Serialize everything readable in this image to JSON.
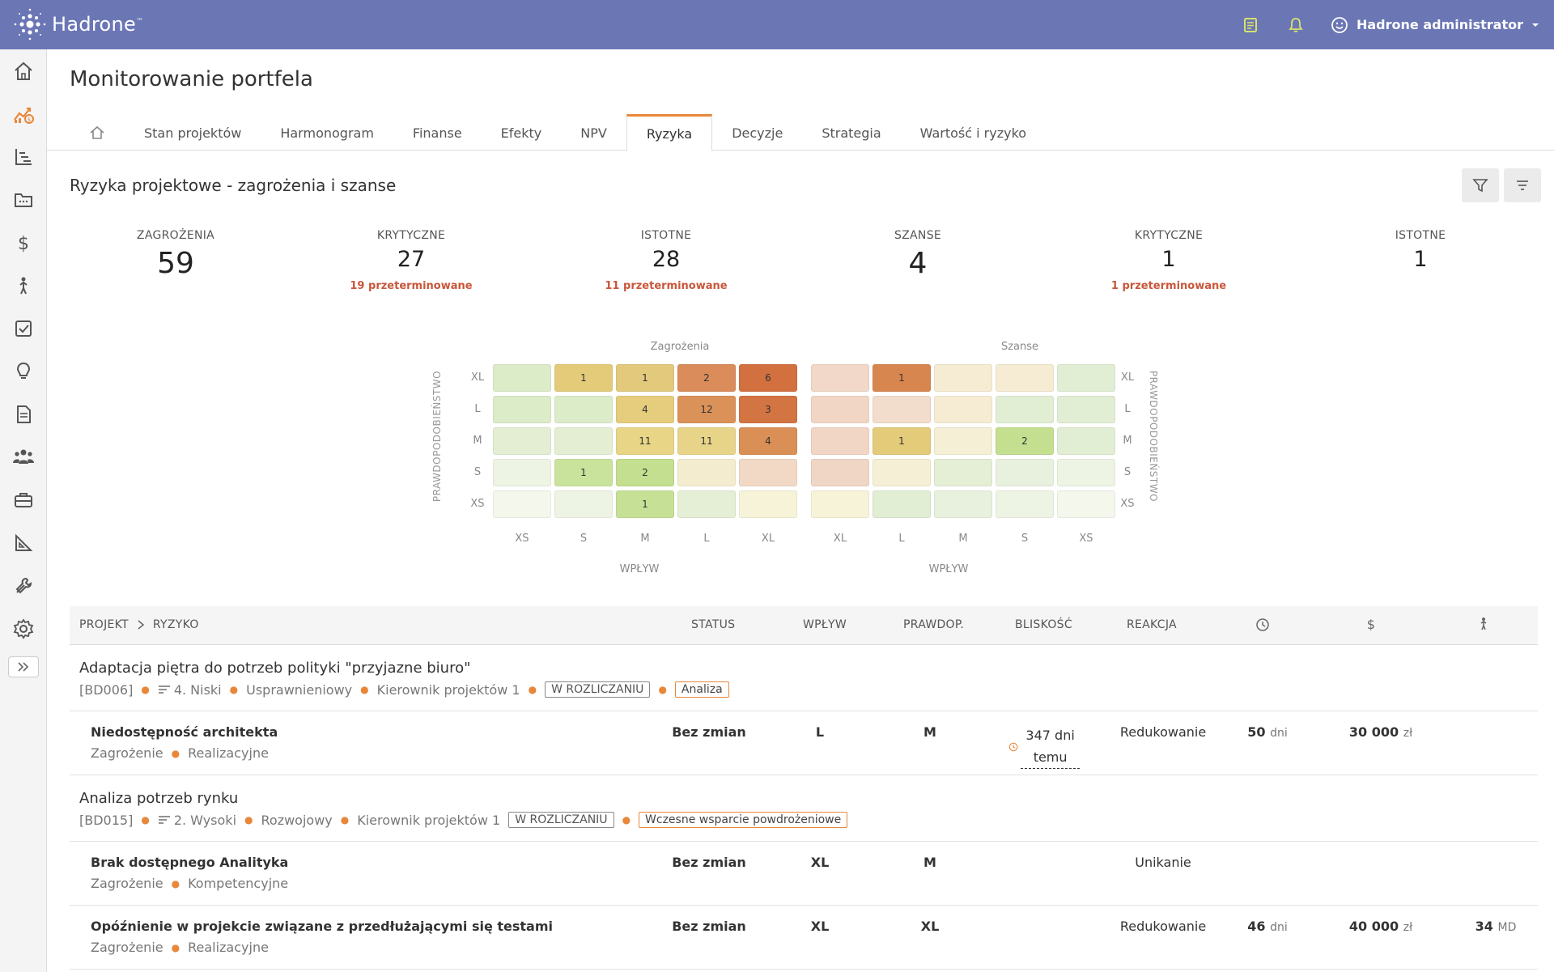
{
  "app": {
    "name": "Hadrone",
    "trademark": "™",
    "user": "Hadrone administrator"
  },
  "page": {
    "title": "Monitorowanie portfela"
  },
  "tabs": [
    {
      "label": ""
    },
    {
      "label": "Stan projektów"
    },
    {
      "label": "Harmonogram"
    },
    {
      "label": "Finanse"
    },
    {
      "label": "Efekty"
    },
    {
      "label": "NPV"
    },
    {
      "label": "Ryzyka"
    },
    {
      "label": "Decyzje"
    },
    {
      "label": "Strategia"
    },
    {
      "label": "Wartość i ryzyko"
    }
  ],
  "active_tab": "Ryzyka",
  "section": {
    "title": "Ryzyka projektowe - zagrożenia i szanse"
  },
  "stats": [
    {
      "label": "ZAGROŻENIA",
      "value": "59",
      "sub": ""
    },
    {
      "label": "KRYTYCZNE",
      "value": "27",
      "sub": "19 przeterminowane"
    },
    {
      "label": "ISTOTNE",
      "value": "28",
      "sub": "11 przeterminowane"
    },
    {
      "label": "SZANSE",
      "value": "4",
      "sub": ""
    },
    {
      "label": "KRYTYCZNE",
      "value": "1",
      "sub": "1 przeterminowane"
    },
    {
      "label": "ISTOTNE",
      "value": "1",
      "sub": ""
    }
  ],
  "matrix": {
    "threats_title": "Zagrożenia",
    "opportunities_title": "Szanse",
    "row_labels": [
      "XL",
      "L",
      "M",
      "S",
      "XS"
    ],
    "threat_cols": [
      "XS",
      "S",
      "M",
      "L",
      "XL"
    ],
    "opp_cols": [
      "XL",
      "L",
      "M",
      "S",
      "XS"
    ],
    "axis_x": "WPŁYW",
    "axis_y": "PRAWDOPODOBIEŃSTWO",
    "threats": [
      [
        {
          "v": "",
          "c": "#dcebc8"
        },
        {
          "v": "1",
          "c": "#e3cb7a"
        },
        {
          "v": "1",
          "c": "#e3c97c"
        },
        {
          "v": "2",
          "c": "#da8c5a"
        },
        {
          "v": "6",
          "c": "#d3703f"
        }
      ],
      [
        {
          "v": "",
          "c": "#dcebc8"
        },
        {
          "v": "",
          "c": "#dcebc8"
        },
        {
          "v": "4",
          "c": "#e5cd7d"
        },
        {
          "v": "12",
          "c": "#da9259"
        },
        {
          "v": "3",
          "c": "#d37443"
        }
      ],
      [
        {
          "v": "",
          "c": "#e3eed2"
        },
        {
          "v": "",
          "c": "#e3eed2"
        },
        {
          "v": "11",
          "c": "#e8d585"
        },
        {
          "v": "11",
          "c": "#e8d488"
        },
        {
          "v": "4",
          "c": "#d98f55"
        }
      ],
      [
        {
          "v": "",
          "c": "#eef4e4"
        },
        {
          "v": "1",
          "c": "#c9e39c"
        },
        {
          "v": "2",
          "c": "#c3df8f"
        },
        {
          "v": "",
          "c": "#f4ecce"
        },
        {
          "v": "",
          "c": "#f1d9c6"
        }
      ],
      [
        {
          "v": "",
          "c": "#f3f7ec"
        },
        {
          "v": "",
          "c": "#eef4e4"
        },
        {
          "v": "1",
          "c": "#c6e196"
        },
        {
          "v": "",
          "c": "#e4efd5"
        },
        {
          "v": "",
          "c": "#f6f3d8"
        }
      ]
    ],
    "opportunities": [
      [
        {
          "v": "",
          "c": "#f2d8c8"
        },
        {
          "v": "1",
          "c": "#d8864f"
        },
        {
          "v": "",
          "c": "#f5ecd3"
        },
        {
          "v": "",
          "c": "#f5ecd3"
        },
        {
          "v": "",
          "c": "#e2eed4"
        }
      ],
      [
        {
          "v": "",
          "c": "#f2d6c5"
        },
        {
          "v": "",
          "c": "#f2ddcc"
        },
        {
          "v": "",
          "c": "#f5ecd3"
        },
        {
          "v": "",
          "c": "#e2eed4"
        },
        {
          "v": "",
          "c": "#e2eed4"
        }
      ],
      [
        {
          "v": "",
          "c": "#f2d6c5"
        },
        {
          "v": "1",
          "c": "#e3cb7a"
        },
        {
          "v": "",
          "c": "#f5efd5"
        },
        {
          "v": "2",
          "c": "#c3df8f"
        },
        {
          "v": "",
          "c": "#e2eed4"
        }
      ],
      [
        {
          "v": "",
          "c": "#efd6c5"
        },
        {
          "v": "",
          "c": "#f5efd5"
        },
        {
          "v": "",
          "c": "#e4efd5"
        },
        {
          "v": "",
          "c": "#e8f1de"
        },
        {
          "v": "",
          "c": "#eef4e4"
        }
      ],
      [
        {
          "v": "",
          "c": "#f6f3d8"
        },
        {
          "v": "",
          "c": "#e2eed4"
        },
        {
          "v": "",
          "c": "#e8f1de"
        },
        {
          "v": "",
          "c": "#eef4e4"
        },
        {
          "v": "",
          "c": "#f3f7ec"
        }
      ]
    ]
  },
  "table": {
    "head": {
      "projekt": "PROJEKT",
      "ryzyko": "RYZYKO",
      "status": "STATUS",
      "wplyw": "WPŁYW",
      "prawdop": "PRAWDOP.",
      "bliskosc": "BLISKOŚĆ",
      "reakcja": "REAKCJA"
    },
    "groups": [
      {
        "title": "Adaptacja piętra do potrzeb polityki \"przyjazne biuro\"",
        "code": "[BD006]",
        "priority": "4. Niski",
        "type": "Usprawnieniowy",
        "manager": "Kierownik projektów 1",
        "status_tag": "W ROZLICZANIU",
        "phase_tag": "Analiza",
        "risks": [
          {
            "name": "Niedostępność architekta",
            "kind": "Zagrożenie",
            "category": "Realizacyjne",
            "status": "Bez zmian",
            "wplyw": "L",
            "prawdop": "M",
            "bliskosc": "347 dni temu",
            "reakcja": "Redukowanie",
            "time_val": "50",
            "time_unit": "dni",
            "cost_val": "30 000",
            "cost_unit": "zł",
            "people_val": "",
            "people_unit": ""
          }
        ]
      },
      {
        "title": "Analiza potrzeb rynku",
        "code": "[BD015]",
        "priority": "2. Wysoki",
        "type": "Rozwojowy",
        "manager": "Kierownik projektów 1",
        "status_tag": "W ROZLICZANIU",
        "phase_tag": "Wczesne wsparcie powdrożeniowe",
        "risks": [
          {
            "name": "Brak dostępnego Analityka",
            "kind": "Zagrożenie",
            "category": "Kompetencyjne",
            "status": "Bez zmian",
            "wplyw": "XL",
            "prawdop": "M",
            "bliskosc": "",
            "reakcja": "Unikanie",
            "time_val": "",
            "time_unit": "",
            "cost_val": "",
            "cost_unit": "",
            "people_val": "",
            "people_unit": ""
          },
          {
            "name": "Opóźnienie w projekcie związane z przedłużającymi się testami",
            "kind": "Zagrożenie",
            "category": "Realizacyjne",
            "status": "Bez zmian",
            "wplyw": "XL",
            "prawdop": "XL",
            "bliskosc": "",
            "reakcja": "Redukowanie",
            "time_val": "46",
            "time_unit": "dni",
            "cost_val": "40 000",
            "cost_unit": "zł",
            "people_val": "34",
            "people_unit": "MD"
          }
        ]
      }
    ]
  },
  "colors": {
    "topbar": "#6b76b5",
    "accent": "#e8873a",
    "alert": "#c9563a"
  }
}
